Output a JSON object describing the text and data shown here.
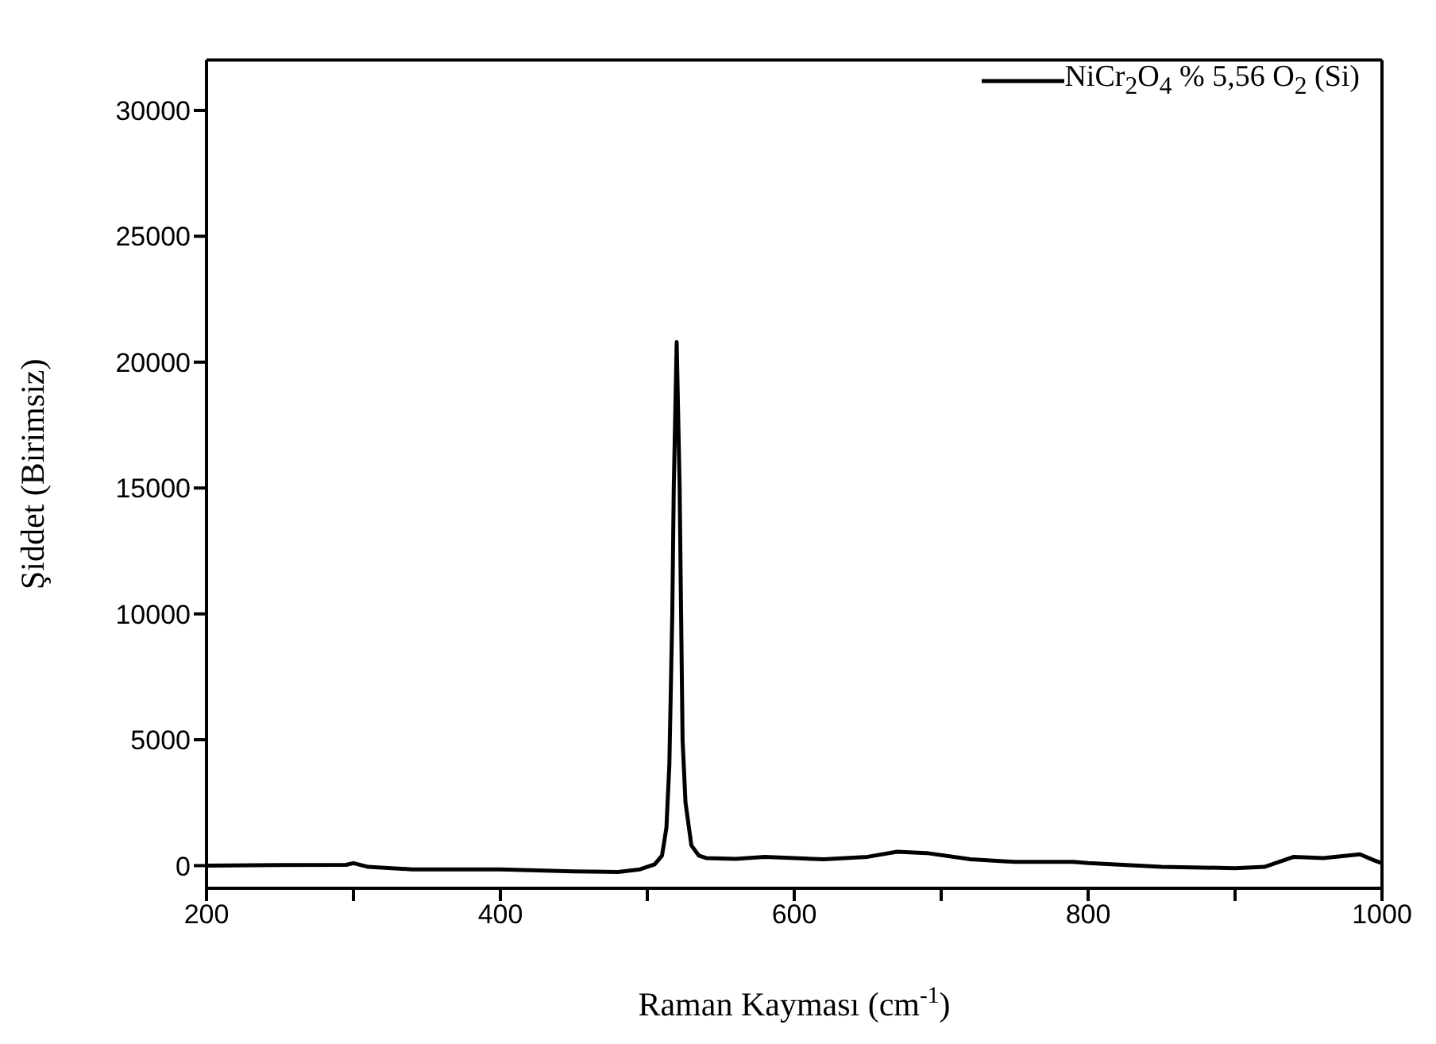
{
  "chart_data": {
    "type": "line",
    "xlabel": "Raman Kayması (cm$^{-1}$)",
    "ylabel": "Şiddet (Birimsiz)",
    "xlim": [
      200,
      1000
    ],
    "xticks": [
      200,
      {
        "value": 300,
        "label": null
      },
      400,
      {
        "value": 500,
        "label": null
      },
      600,
      {
        "value": 700,
        "label": null
      },
      800,
      {
        "value": 900,
        "label": null
      },
      1000
    ],
    "ylim": [
      -900,
      32000
    ],
    "yticks": [
      0,
      5000,
      10000,
      15000,
      20000,
      25000,
      30000
    ],
    "grid": false,
    "legend": "top right",
    "marker": "none",
    "line_style": "solid",
    "x": [
      200,
      250,
      295,
      300,
      310,
      340,
      400,
      450,
      480,
      495,
      505,
      510,
      513,
      515,
      517,
      518,
      520,
      522,
      523,
      524,
      526,
      530,
      535,
      540,
      560,
      580,
      620,
      650,
      670,
      690,
      720,
      750,
      790,
      800,
      850,
      900,
      920,
      940,
      960,
      985,
      995,
      1000
    ],
    "series": [
      {
        "name": "NiCr$_{2}$O$_{4}$ % 5,56 O$_{2}$ (Si)",
        "color": "#000000",
        "values": [
          0,
          20,
          30,
          100,
          -50,
          -150,
          -150,
          -230,
          -250,
          -150,
          50,
          400,
          1500,
          4000,
          10000,
          15000,
          20800,
          15000,
          10000,
          5000,
          2500,
          800,
          400,
          300,
          270,
          350,
          250,
          350,
          550,
          500,
          250,
          150,
          150,
          100,
          -50,
          -100,
          -50,
          350,
          300,
          450,
          200,
          100
        ]
      }
    ]
  }
}
